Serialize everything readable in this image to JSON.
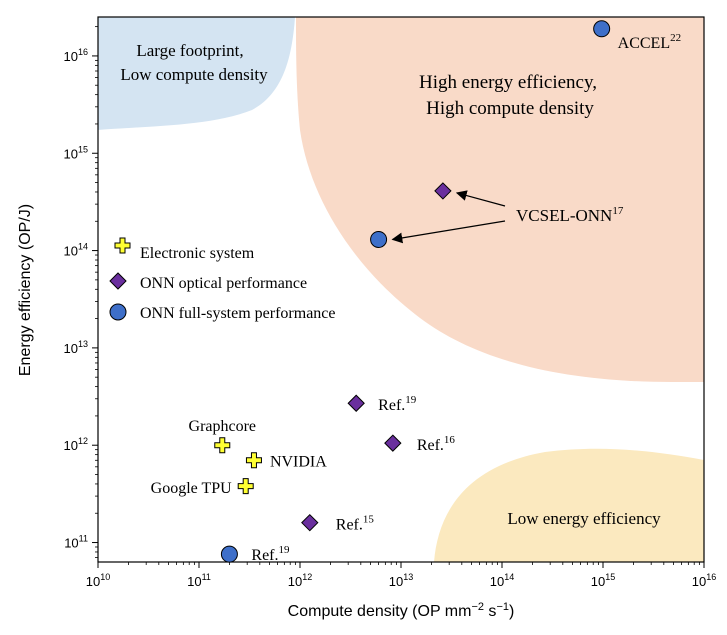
{
  "chart_data": {
    "type": "scatter",
    "title": "",
    "xlabel": "Compute density (OP mm",
    "xlabel_sup1": "−2",
    "xlabel_mid": " s",
    "xlabel_sup2": "−1",
    "xlabel_end": ")",
    "ylabel": "Energy efficiency (OP/J)",
    "xscale": "log",
    "yscale": "log",
    "xlim_exp": [
      10,
      16
    ],
    "ylim_exp": [
      10.8,
      16.4
    ],
    "x_tick_exps": [
      10,
      11,
      12,
      13,
      14,
      15,
      16
    ],
    "y_tick_exps": [
      11,
      12,
      13,
      14,
      15,
      16
    ],
    "tick_base": "10",
    "grid": false,
    "colors": {
      "electronic_fill": "#ffff33",
      "optical_fill": "#6a2f9e",
      "fullsystem_fill": "#3e6fc9",
      "region_footprint": "#d4e4f2",
      "region_high": "#f9dac8",
      "region_low": "#fbe9bf"
    },
    "regions": [
      {
        "label_lines": [
          "Large footprint,",
          "Low compute density"
        ],
        "position": "top-left"
      },
      {
        "label_lines": [
          "High energy efficiency,",
          "High compute density"
        ],
        "position": "top-right"
      },
      {
        "label_lines": [
          "Low energy efficiency"
        ],
        "position": "bottom-right"
      }
    ],
    "legend": {
      "position": "left-center",
      "entries": [
        {
          "label": "Electronic system",
          "marker": "plus"
        },
        {
          "label": "ONN optical performance",
          "marker": "diamond"
        },
        {
          "label": "ONN full-system performance",
          "marker": "circle"
        }
      ]
    },
    "series": [
      {
        "name": "Electronic system",
        "marker": "plus",
        "points": [
          {
            "label": "Graphcore",
            "x": 170000000000.0,
            "y": 1000000000000.0
          },
          {
            "label": "NVIDIA",
            "x": 350000000000.0,
            "y": 700000000000.0
          },
          {
            "label": "Google TPU",
            "x": 290000000000.0,
            "y": 380000000000.0
          }
        ]
      },
      {
        "name": "ONN optical performance",
        "marker": "diamond",
        "points": [
          {
            "label": "Ref.",
            "ref": "19",
            "x": 3600000000000.0,
            "y": 2700000000000.0
          },
          {
            "label": "Ref.",
            "ref": "16",
            "x": 8300000000000.0,
            "y": 1050000000000.0
          },
          {
            "label": "Ref.",
            "ref": "15",
            "x": 1250000000000.0,
            "y": 160000000000.0
          },
          {
            "label": "",
            "x": 26000000000000.0,
            "y": 410000000000000.0
          }
        ]
      },
      {
        "name": "ONN full-system performance",
        "marker": "circle",
        "points": [
          {
            "label": "ACCEL",
            "ref": "22",
            "x": 970000000000000.0,
            "y": 1.9e+16
          },
          {
            "label": "",
            "x": 6000000000000.0,
            "y": 130000000000000.0
          },
          {
            "label": "Ref.",
            "ref": "19",
            "x": 200000000000.0,
            "y": 76000000000.0
          }
        ]
      }
    ],
    "annotations": [
      {
        "label": "VCSEL-ONN",
        "ref": "17",
        "arrows_to": [
          [
            26000000000000.0,
            410000000000000.0
          ],
          [
            6000000000000.0,
            130000000000000.0
          ]
        ]
      }
    ]
  }
}
